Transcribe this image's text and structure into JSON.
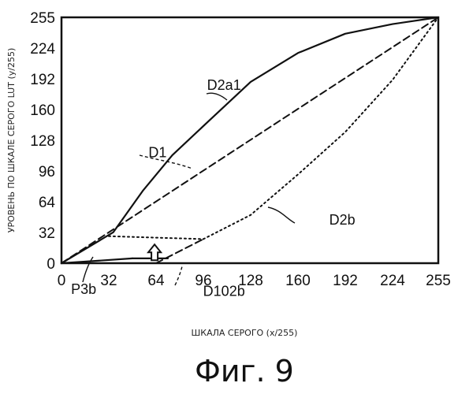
{
  "chart_data": {
    "type": "line",
    "title": "",
    "caption": "Фиг. 9",
    "xlabel": "ШКАЛА СЕРОГО (x/255)",
    "ylabel": "УРОВЕНЬ ПО ШКАЛЕ СЕРОГО LUT (y/255)",
    "xlim": [
      0,
      255
    ],
    "ylim": [
      0,
      255
    ],
    "grid": false,
    "x_ticks": [
      0,
      32,
      64,
      96,
      128,
      160,
      192,
      224,
      255
    ],
    "y_ticks": [
      0,
      32,
      64,
      96,
      128,
      160,
      192,
      224,
      255
    ],
    "x_tick_labels": [
      "0",
      "32",
      "64",
      "96",
      "128",
      "160",
      "192",
      "224",
      "255"
    ],
    "y_tick_labels": [
      "0",
      "32",
      "64",
      "96",
      "128",
      "160",
      "192",
      "224",
      "255"
    ],
    "series": [
      {
        "name": "D2a1",
        "style": "solid",
        "points": [
          [
            0,
            0
          ],
          [
            35,
            32
          ],
          [
            55,
            75
          ],
          [
            75,
            112
          ],
          [
            100,
            148
          ],
          [
            128,
            188
          ],
          [
            160,
            218
          ],
          [
            192,
            238
          ],
          [
            224,
            248
          ],
          [
            255,
            255
          ]
        ]
      },
      {
        "name": "D1",
        "style": "dashed",
        "points": [
          [
            0,
            0
          ],
          [
            255,
            255
          ]
        ]
      },
      {
        "name": "D2b",
        "style": "dotted",
        "points": [
          [
            96,
            25
          ],
          [
            128,
            50
          ],
          [
            160,
            92
          ],
          [
            192,
            136
          ],
          [
            224,
            190
          ],
          [
            255,
            255
          ]
        ]
      },
      {
        "name": "D102b",
        "style": "dashed",
        "points": [
          [
            64,
            0
          ],
          [
            96,
            25
          ]
        ]
      },
      {
        "name": "P3b",
        "style": "dotted",
        "points": [
          [
            32,
            28
          ],
          [
            96,
            25
          ]
        ]
      }
    ],
    "segments": [
      {
        "style": "solid",
        "points": [
          [
            0,
            0
          ],
          [
            48,
            5
          ]
        ]
      },
      {
        "style": "solid",
        "points": [
          [
            48,
            5
          ],
          [
            72,
            5
          ]
        ]
      }
    ],
    "labels": [
      {
        "text": "D2a1",
        "x": 110,
        "y": 180
      },
      {
        "text": "D1",
        "x": 65,
        "y": 110
      },
      {
        "text": "D2b",
        "x": 190,
        "y": 40
      },
      {
        "text": "P3b",
        "x": 15,
        "y": -32
      },
      {
        "text": "D102b",
        "x": 110,
        "y": -34
      }
    ],
    "arrow": {
      "direction": "up",
      "x": 63,
      "y": 8
    }
  }
}
